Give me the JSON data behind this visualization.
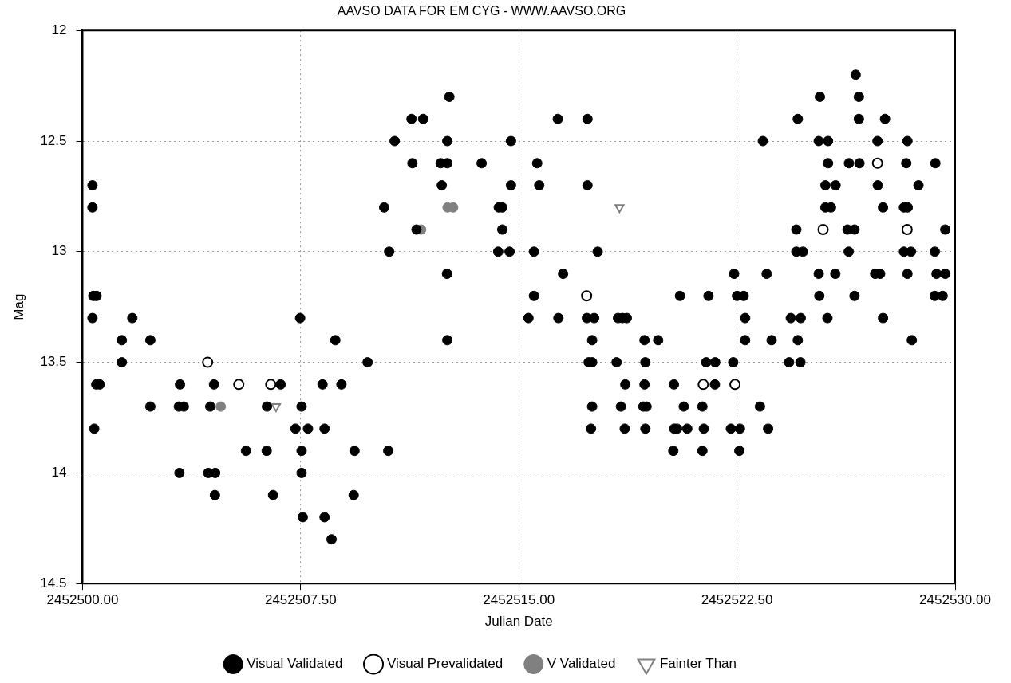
{
  "chart_data": {
    "type": "scatter",
    "title": "AAVSO DATA FOR EM CYG - WWW.AAVSO.ORG",
    "xlabel": "Julian Date",
    "ylabel": "Mag",
    "xlim": [
      2452500,
      2452530
    ],
    "ylim": [
      14.5,
      12
    ],
    "xticks": [
      {
        "value": 2452500,
        "label": "2452500.00"
      },
      {
        "value": 2452507.5,
        "label": "2452507.50"
      },
      {
        "value": 2452515,
        "label": "2452515.00"
      },
      {
        "value": 2452522.5,
        "label": "2452522.50"
      },
      {
        "value": 2452530,
        "label": "2452530.00"
      }
    ],
    "yticks": [
      12,
      12.5,
      13,
      13.5,
      14,
      14.5
    ],
    "grid": true,
    "legend": "bottom",
    "series": [
      {
        "name": "Visual Validated",
        "color": "#000000",
        "marker": "circle",
        "x": [
          2452500.34,
          2452500.34,
          2452500.37,
          2452500.48,
          2452500.34,
          2452501.71,
          2452501.35,
          2452502.33,
          2452501.35,
          2452500.47,
          2452500.59,
          2452503.35,
          2452504.52,
          2452506.81,
          2452508.25,
          2452508.9,
          2452507.48,
          2452508.69,
          2452502.33,
          2452503.31,
          2452503.48,
          2452504.39,
          2452506.34,
          2452507.53,
          2452500.4,
          2452507.32,
          2452507.75,
          2452508.32,
          2452505.62,
          2452506.33,
          2452507.53,
          2452503.33,
          2452504.32,
          2452504.56,
          2452507.53,
          2452504.55,
          2452506.55,
          2452507.57,
          2452508.32,
          2452508.56,
          2452512.61,
          2452511.31,
          2452511.71,
          2452510.73,
          2452512.54,
          2452514.73,
          2452511.34,
          2452512.31,
          2452512.54,
          2452513.72,
          2452515.63,
          2452512.35,
          2452514.73,
          2452515.7,
          2452510.37,
          2452514.31,
          2452514.43,
          2452511.48,
          2452514.43,
          2452510.54,
          2452514.29,
          2452514.68,
          2452515.52,
          2452512.53,
          2452515.52,
          2452515.33,
          2452512.54,
          2452509.8,
          2452509.35,
          2452510.51,
          2452509.32,
          2452516.34,
          2452517.36,
          2452517.36,
          2452517.71,
          2452516.52,
          2452520.54,
          2452521.52,
          2452522.5,
          2452522.73,
          2452516.36,
          2452517.34,
          2452517.59,
          2452518.41,
          2452518.56,
          2452518.71,
          2452522.78,
          2452517.52,
          2452519.32,
          2452519.79,
          2452522.78,
          2452517.4,
          2452517.52,
          2452518.36,
          2452519.35,
          2452521.44,
          2452521.75,
          2452522.37,
          2452518.66,
          2452519.32,
          2452520.33,
          2452521.74,
          2452517.52,
          2452518.51,
          2452519.28,
          2452519.39,
          2452520.67,
          2452521.31,
          2452517.48,
          2452518.64,
          2452519.35,
          2452520.34,
          2452520.44,
          2452520.79,
          2452521.36,
          2452522.29,
          2452522.6,
          2452520.31,
          2452521.31,
          2452522.58,
          2452526.58,
          2452525.35,
          2452526.69,
          2452524.59,
          2452526.69,
          2452527.59,
          2452523.39,
          2452525.31,
          2452525.63,
          2452527.33,
          2452528.36,
          2452525.63,
          2452526.35,
          2452526.71,
          2452528.32,
          2452529.32,
          2452525.54,
          2452525.89,
          2452527.34,
          2452528.74,
          2452525.54,
          2452525.73,
          2452527.52,
          2452528.24,
          2452528.37,
          2452524.54,
          2452526.3,
          2452526.54,
          2452529.66,
          2452524.54,
          2452524.77,
          2452526.34,
          2452528.24,
          2452528.48,
          2452529.3,
          2452522.4,
          2452523.52,
          2452525.31,
          2452525.88,
          2452527.25,
          2452527.42,
          2452528.36,
          2452529.36,
          2452529.66,
          2452525.33,
          2452526.54,
          2452529.3,
          2452529.57,
          2452524.35,
          2452524.69,
          2452525.61,
          2452527.52,
          2452523.69,
          2452524.59,
          2452528.51,
          2452524.29,
          2452524.68,
          2452523.29,
          2452523.57
        ],
        "values": [
          12.7,
          12.8,
          13.2,
          13.2,
          13.3,
          13.3,
          13.4,
          13.4,
          13.5,
          13.6,
          13.6,
          13.6,
          13.6,
          13.6,
          13.6,
          13.6,
          13.3,
          13.4,
          13.7,
          13.7,
          13.7,
          13.7,
          13.7,
          13.7,
          13.8,
          13.8,
          13.8,
          13.8,
          13.9,
          13.9,
          13.9,
          14.0,
          14.0,
          14.0,
          14.0,
          14.1,
          14.1,
          14.2,
          14.2,
          14.3,
          12.3,
          12.4,
          12.4,
          12.5,
          12.5,
          12.5,
          12.6,
          12.6,
          12.6,
          12.6,
          12.6,
          12.7,
          12.7,
          12.7,
          12.8,
          12.8,
          12.8,
          12.9,
          12.9,
          13.0,
          13.0,
          13.0,
          13.0,
          13.1,
          13.2,
          13.3,
          13.4,
          13.5,
          13.9,
          13.9,
          14.1,
          12.4,
          12.4,
          12.7,
          13.0,
          13.1,
          13.2,
          13.2,
          13.2,
          13.2,
          13.3,
          13.3,
          13.3,
          13.3,
          13.3,
          13.3,
          13.3,
          13.4,
          13.4,
          13.4,
          13.4,
          13.5,
          13.5,
          13.5,
          13.5,
          13.5,
          13.5,
          13.5,
          13.6,
          13.6,
          13.6,
          13.6,
          13.7,
          13.7,
          13.7,
          13.7,
          13.7,
          13.7,
          13.8,
          13.8,
          13.8,
          13.8,
          13.8,
          13.8,
          13.8,
          13.8,
          13.8,
          13.9,
          13.9,
          13.9,
          12.2,
          12.3,
          12.3,
          12.4,
          12.4,
          12.4,
          12.5,
          12.5,
          12.5,
          12.5,
          12.5,
          12.6,
          12.6,
          12.6,
          12.6,
          12.6,
          12.7,
          12.7,
          12.7,
          12.7,
          12.8,
          12.8,
          12.8,
          12.8,
          12.8,
          12.9,
          12.9,
          12.9,
          12.9,
          13.0,
          13.0,
          13.0,
          13.0,
          13.0,
          13.0,
          13.1,
          13.1,
          13.1,
          13.1,
          13.1,
          13.1,
          13.1,
          13.1,
          13.1,
          13.2,
          13.2,
          13.2,
          13.2,
          13.3,
          13.3,
          13.3,
          13.3,
          13.4,
          13.4,
          13.4,
          13.5,
          13.5,
          13.7,
          13.8
        ]
      },
      {
        "name": "Visual Prevalidated",
        "color": "#000000",
        "marker": "circle",
        "x": [
          2452504.3,
          2452505.37,
          2452506.47,
          2452517.33,
          2452521.34,
          2452522.43,
          2452527.33,
          2452525.46,
          2452528.35
        ],
        "values": [
          13.5,
          13.6,
          13.6,
          13.2,
          13.6,
          13.6,
          12.6,
          12.9,
          12.9
        ]
      },
      {
        "name": "V Validated",
        "color": "#808080",
        "marker": "circle",
        "x": [
          2452504.75,
          2452512.55,
          2452512.74,
          2452511.64
        ],
        "values": [
          13.7,
          12.8,
          12.8,
          12.9
        ]
      },
      {
        "name": "Fainter Than",
        "color": "#808080",
        "marker": "triangle",
        "x": [
          2452506.65,
          2452518.46
        ],
        "values": [
          13.7,
          12.8
        ]
      }
    ]
  }
}
